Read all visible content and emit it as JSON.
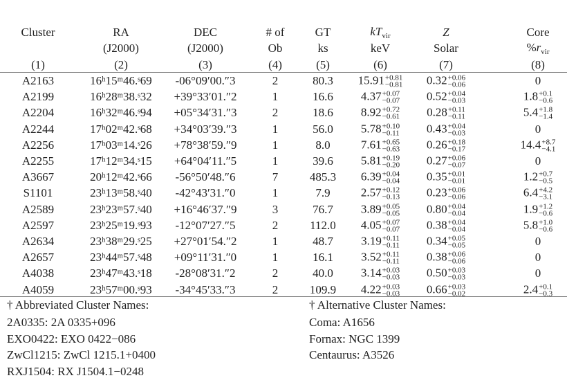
{
  "table": {
    "columns": [
      {
        "lines": [
          "Cluster"
        ],
        "number": "(1)"
      },
      {
        "lines": [
          "RA",
          "(J2000)"
        ],
        "number": "(2)"
      },
      {
        "lines": [
          "DEC",
          "(J2000)"
        ],
        "number": "(3)"
      },
      {
        "lines": [
          "# of",
          "Ob"
        ],
        "number": "(4)"
      },
      {
        "lines": [
          "GT",
          "ks"
        ],
        "number": "(5)"
      },
      {
        "lines": [
          {
            "italic": "kT",
            "sub": "vir"
          },
          "keV"
        ],
        "number": "(6)"
      },
      {
        "lines": [
          {
            "italic": "Z"
          },
          "Solar"
        ],
        "number": "(7)"
      },
      {
        "lines": [
          "Core",
          {
            "text": "%",
            "italic": "r",
            "sub": "vir"
          }
        ],
        "number": "(8)"
      }
    ],
    "rows": [
      [
        "A2163",
        "16ʰ15ᵐ46.ˢ69",
        "-06°09′00.″3",
        "2",
        "80.3",
        {
          "value": "15.91",
          "plus": "+0.81",
          "minus": "−0.81"
        },
        {
          "value": "0.32",
          "plus": "+0.06",
          "minus": "−0.06"
        },
        "0"
      ],
      [
        "A2199",
        "16ʰ28ᵐ38.ˢ32",
        "+39°33′01.″2",
        "1",
        "16.6",
        {
          "value": "4.37",
          "plus": "+0.07",
          "minus": "−0.07"
        },
        {
          "value": "0.52",
          "plus": "+0.04",
          "minus": "−0.03"
        },
        {
          "value": "1.8",
          "plus": "+0.1",
          "minus": "−0.6"
        }
      ],
      [
        "A2204",
        "16ʰ32ᵐ46.ˢ94",
        "+05°34′31.″3",
        "2",
        "18.6",
        {
          "value": "8.92",
          "plus": "+0.72",
          "minus": "−0.61"
        },
        {
          "value": "0.28",
          "plus": "+0.11",
          "minus": "−0.11"
        },
        {
          "value": "5.4",
          "plus": "+1.8",
          "minus": "−1.4"
        }
      ],
      [
        "A2244",
        "17ʰ02ᵐ42.ˢ68",
        "+34°03′39.″3",
        "1",
        "56.0",
        {
          "value": "5.78",
          "plus": "+0.10",
          "minus": "−0.11"
        },
        {
          "value": "0.43",
          "plus": "+0.04",
          "minus": "−0.03"
        },
        "0"
      ],
      [
        "A2256",
        "17ʰ03ᵐ14.ˢ26",
        "+78°38′59.″9",
        "1",
        "8.0",
        {
          "value": "7.61",
          "plus": "+0.65",
          "minus": "−0.63"
        },
        {
          "value": "0.26",
          "plus": "+0.18",
          "minus": "−0.17"
        },
        {
          "value": "14.4",
          "plus": "+8.7",
          "minus": "−4.1"
        }
      ],
      [
        "A2255",
        "17ʰ12ᵐ34.ˢ15",
        "+64°04′11.″5",
        "1",
        "39.6",
        {
          "value": "5.81",
          "plus": "+0.19",
          "minus": "−0.20"
        },
        {
          "value": "0.27",
          "plus": "+0.06",
          "minus": "−0.07"
        },
        "0"
      ],
      [
        "A3667",
        "20ʰ12ᵐ42.ˢ66",
        "-56°50′48.″6",
        "7",
        "485.3",
        {
          "value": "6.39",
          "plus": "+0.04",
          "minus": "−0.04"
        },
        {
          "value": "0.35",
          "plus": "+0.01",
          "minus": "−0.01"
        },
        {
          "value": "1.2",
          "plus": "+0.7",
          "minus": "−0.5"
        }
      ],
      [
        "S1101",
        "23ʰ13ᵐ58.ˢ40",
        "-42°43′31.″0",
        "1",
        "7.9",
        {
          "value": "2.57",
          "plus": "+0.12",
          "minus": "−0.13"
        },
        {
          "value": "0.23",
          "plus": "+0.06",
          "minus": "−0.06"
        },
        {
          "value": "6.4",
          "plus": "+4.2",
          "minus": "−3.1"
        }
      ],
      [
        "A2589",
        "23ʰ23ᵐ57.ˢ40",
        "+16°46′37.″9",
        "3",
        "76.7",
        {
          "value": "3.89",
          "plus": "+0.05",
          "minus": "−0.05"
        },
        {
          "value": "0.80",
          "plus": "+0.04",
          "minus": "−0.04"
        },
        {
          "value": "1.9",
          "plus": "+1.2",
          "minus": "−0.6"
        }
      ],
      [
        "A2597",
        "23ʰ25ᵐ19.ˢ93",
        "-12°07′27.″5",
        "2",
        "112.0",
        {
          "value": "4.05",
          "plus": "+0.07",
          "minus": "−0.07"
        },
        {
          "value": "0.38",
          "plus": "+0.04",
          "minus": "−0.04"
        },
        {
          "value": "5.8",
          "plus": "+1.0",
          "minus": "−0.6"
        }
      ],
      [
        "A2634",
        "23ʰ38ᵐ29.ˢ25",
        "+27°01′54.″2",
        "1",
        "48.7",
        {
          "value": "3.19",
          "plus": "+0.11",
          "minus": "−0.11"
        },
        {
          "value": "0.34",
          "plus": "+0.05",
          "minus": "−0.05"
        },
        "0"
      ],
      [
        "A2657",
        "23ʰ44ᵐ57.ˢ48",
        "+09°11′31.″0",
        "1",
        "16.1",
        {
          "value": "3.52",
          "plus": "+0.11",
          "minus": "−0.11"
        },
        {
          "value": "0.38",
          "plus": "+0.06",
          "minus": "−0.06"
        },
        "0"
      ],
      [
        "A4038",
        "23ʰ47ᵐ43.ˢ18",
        "-28°08′31.″2",
        "2",
        "40.0",
        {
          "value": "3.14",
          "plus": "+0.03",
          "minus": "−0.03"
        },
        {
          "value": "0.50",
          "plus": "+0.03",
          "minus": "−0.03"
        },
        "0"
      ],
      [
        "A4059",
        "23ʰ57ᵐ00.ˢ93",
        "-34°45′33.″3",
        "2",
        "109.9",
        {
          "value": "4.22",
          "plus": "+0.03",
          "minus": "−0.03"
        },
        {
          "value": "0.66",
          "plus": "+0.03",
          "minus": "−0.02"
        },
        {
          "value": "2.4",
          "plus": "+0.1",
          "minus": "−0.3"
        }
      ]
    ]
  },
  "footnotes": [
    {
      "title": "† Abbreviated Cluster Names:",
      "items": [
        "2A0335: 2A 0335+096",
        "EXO0422: EXO 0422−086",
        "ZwCl1215: ZwCl 1215.1+0400",
        "RXJ1504: RX J1504.1−0248"
      ]
    },
    {
      "title": "† Alternative Cluster Names:",
      "items": [
        "Coma: A1656",
        "Fornax: NGC 1399",
        "Centaurus: A3526"
      ]
    }
  ]
}
